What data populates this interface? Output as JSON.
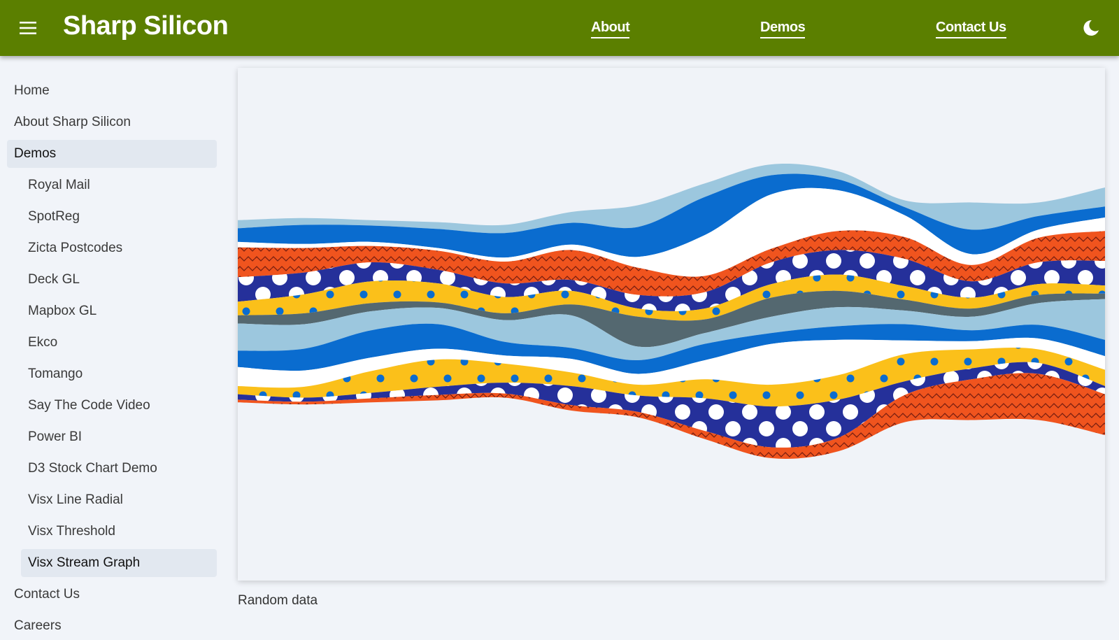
{
  "header": {
    "title": "Sharp Silicon",
    "nav": [
      "About",
      "Demos",
      "Contact Us"
    ]
  },
  "sidebar": {
    "top": [
      "Home",
      "About Sharp Silicon",
      "Demos"
    ],
    "demos": [
      "Royal Mail",
      "SpotReg",
      "Zicta Postcodes",
      "Deck GL",
      "Mapbox GL",
      "Ekco",
      "Tomango",
      "Say The Code Video",
      "Power BI",
      "D3 Stock Chart Demo",
      "Visx Line Radial",
      "Visx Threshold",
      "Visx Stream Graph"
    ],
    "bottom": [
      "Contact Us",
      "Careers"
    ]
  },
  "chart_data": {
    "type": "streamgraph",
    "caption": "Random data",
    "series": [
      {
        "color": "#9cc7de",
        "pattern": "none",
        "values": [
          6,
          5,
          4,
          5,
          6,
          8,
          16,
          10,
          8,
          6,
          5,
          20,
          10,
          14
        ]
      },
      {
        "color": "#0a6ccf",
        "pattern": "none",
        "values": [
          10,
          14,
          12,
          14,
          18,
          16,
          22,
          28,
          14,
          8,
          6,
          18,
          10,
          8
        ]
      },
      {
        "color": "#ffffff",
        "pattern": "none",
        "values": [
          4,
          3,
          3,
          2,
          3,
          4,
          8,
          30,
          40,
          30,
          16,
          8,
          6,
          10
        ]
      },
      {
        "color": "#f0541e",
        "pattern": "zigzag",
        "values": [
          22,
          18,
          12,
          14,
          16,
          22,
          20,
          12,
          10,
          14,
          16,
          12,
          18,
          22
        ]
      },
      {
        "color": "#25309a",
        "pattern": "dots",
        "values": [
          18,
          16,
          14,
          10,
          10,
          8,
          10,
          12,
          16,
          18,
          20,
          12,
          16,
          18
        ]
      },
      {
        "color": "#fbc01a",
        "pattern": "dots",
        "values": [
          10,
          14,
          16,
          14,
          12,
          10,
          6,
          8,
          10,
          12,
          10,
          8,
          8,
          6
        ]
      },
      {
        "color": "#546870",
        "pattern": "none",
        "values": [
          6,
          8,
          6,
          4,
          5,
          8,
          22,
          10,
          14,
          12,
          8,
          6,
          6,
          4
        ]
      },
      {
        "color": "#9cc7de",
        "pattern": "none",
        "values": [
          20,
          18,
          14,
          12,
          16,
          24,
          10,
          8,
          12,
          14,
          10,
          10,
          16,
          30
        ]
      },
      {
        "color": "#0a6ccf",
        "pattern": "none",
        "values": [
          12,
          16,
          20,
          18,
          10,
          8,
          10,
          12,
          8,
          10,
          12,
          8,
          10,
          12
        ]
      },
      {
        "color": "#ffffff",
        "pattern": "none",
        "values": [
          14,
          12,
          10,
          8,
          6,
          10,
          8,
          14,
          30,
          26,
          10,
          6,
          8,
          10
        ]
      },
      {
        "color": "#fbc01a",
        "pattern": "dots",
        "values": [
          6,
          8,
          16,
          20,
          14,
          10,
          8,
          14,
          16,
          18,
          20,
          14,
          10,
          12
        ]
      },
      {
        "color": "#25309a",
        "pattern": "dots",
        "values": [
          4,
          3,
          4,
          6,
          8,
          14,
          12,
          24,
          30,
          28,
          10,
          8,
          8,
          6
        ]
      },
      {
        "color": "#f0541e",
        "pattern": "zigzag",
        "values": [
          2,
          2,
          3,
          4,
          3,
          4,
          4,
          6,
          8,
          10,
          20,
          30,
          34,
          30
        ]
      }
    ]
  }
}
